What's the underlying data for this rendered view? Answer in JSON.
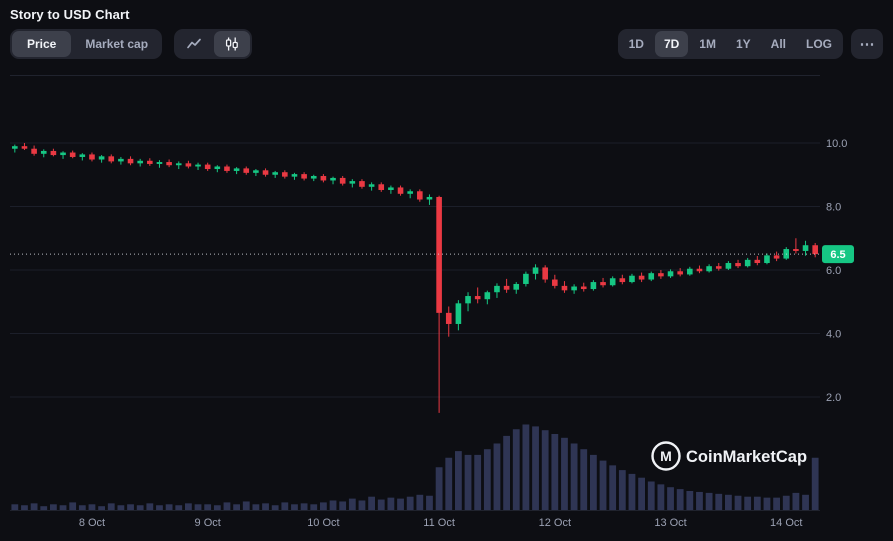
{
  "header": {
    "title": "Story to USD Chart"
  },
  "toolbar": {
    "metric": [
      {
        "label": "Price",
        "active": true
      },
      {
        "label": "Market cap",
        "active": false
      }
    ],
    "chart_type": [
      {
        "name": "line-chart",
        "active": false
      },
      {
        "name": "candlestick-chart",
        "active": true
      }
    ],
    "ranges": [
      {
        "label": "1D",
        "active": false
      },
      {
        "label": "7D",
        "active": true
      },
      {
        "label": "1M",
        "active": false
      },
      {
        "label": "1Y",
        "active": false
      },
      {
        "label": "All",
        "active": false
      },
      {
        "label": "LOG",
        "active": false
      }
    ],
    "more_label": "⋯"
  },
  "watermark": {
    "monogram": "M",
    "text": "CoinMarketCap"
  },
  "chart_data": {
    "type": "candlestick",
    "title": "Story to USD Chart",
    "x_labels": [
      "8 Oct",
      "9 Oct",
      "10 Oct",
      "11 Oct",
      "12 Oct",
      "13 Oct",
      "14 Oct"
    ],
    "x_label_indices": [
      8,
      20,
      32,
      44,
      56,
      68,
      80
    ],
    "y_tick_labels": [
      "10.0",
      "8.0",
      "6.0",
      "4.0",
      "2.0"
    ],
    "y_range_shown": [
      2.0,
      10.0
    ],
    "grid": "horizontal-only",
    "current_price": 6.5,
    "current_price_label": "6.5",
    "colors": {
      "up": "#16c784",
      "down": "#ea3943",
      "volume": "#2f3554",
      "price_badge": "#16c784",
      "grid": "#1c1f2a",
      "axis_text": "#9ba1b3"
    },
    "candles_format": [
      "open",
      "high",
      "low",
      "close",
      "volume_rel"
    ],
    "candles": [
      [
        9.82,
        9.95,
        9.7,
        9.9,
        6
      ],
      [
        9.9,
        10.0,
        9.78,
        9.82,
        5
      ],
      [
        9.82,
        9.92,
        9.6,
        9.66,
        7
      ],
      [
        9.66,
        9.8,
        9.55,
        9.75,
        4
      ],
      [
        9.75,
        9.82,
        9.58,
        9.62,
        6
      ],
      [
        9.62,
        9.74,
        9.5,
        9.7,
        5
      ],
      [
        9.7,
        9.76,
        9.52,
        9.56,
        8
      ],
      [
        9.56,
        9.68,
        9.45,
        9.64,
        5
      ],
      [
        9.64,
        9.7,
        9.42,
        9.48,
        6
      ],
      [
        9.48,
        9.62,
        9.38,
        9.58,
        4
      ],
      [
        9.58,
        9.64,
        9.36,
        9.42,
        7
      ],
      [
        9.42,
        9.56,
        9.32,
        9.5,
        5
      ],
      [
        9.5,
        9.58,
        9.3,
        9.36,
        6
      ],
      [
        9.36,
        9.5,
        9.26,
        9.44,
        5
      ],
      [
        9.44,
        9.52,
        9.28,
        9.34,
        7
      ],
      [
        9.34,
        9.46,
        9.22,
        9.4,
        5
      ],
      [
        9.4,
        9.48,
        9.24,
        9.3,
        6
      ],
      [
        9.3,
        9.42,
        9.18,
        9.36,
        5
      ],
      [
        9.36,
        9.44,
        9.2,
        9.26,
        7
      ],
      [
        9.26,
        9.38,
        9.15,
        9.32,
        6
      ],
      [
        9.32,
        9.38,
        9.12,
        9.18,
        6
      ],
      [
        9.18,
        9.3,
        9.08,
        9.26,
        5
      ],
      [
        9.26,
        9.32,
        9.06,
        9.12,
        8
      ],
      [
        9.12,
        9.24,
        9.02,
        9.2,
        6
      ],
      [
        9.2,
        9.26,
        9.0,
        9.06,
        9
      ],
      [
        9.06,
        9.18,
        8.96,
        9.14,
        6
      ],
      [
        9.14,
        9.2,
        8.94,
        9.0,
        7
      ],
      [
        9.0,
        9.12,
        8.9,
        9.08,
        5
      ],
      [
        9.08,
        9.14,
        8.88,
        8.94,
        8
      ],
      [
        8.94,
        9.06,
        8.84,
        9.02,
        6
      ],
      [
        9.02,
        9.08,
        8.82,
        8.88,
        7
      ],
      [
        8.88,
        9.0,
        8.8,
        8.96,
        6
      ],
      [
        8.96,
        9.02,
        8.76,
        8.82,
        8
      ],
      [
        8.82,
        8.94,
        8.7,
        8.9,
        10
      ],
      [
        8.9,
        8.96,
        8.66,
        8.72,
        9
      ],
      [
        8.72,
        8.86,
        8.6,
        8.8,
        12
      ],
      [
        8.8,
        8.86,
        8.56,
        8.62,
        10
      ],
      [
        8.62,
        8.76,
        8.5,
        8.7,
        14
      ],
      [
        8.7,
        8.76,
        8.46,
        8.52,
        11
      ],
      [
        8.52,
        8.66,
        8.4,
        8.6,
        13
      ],
      [
        8.6,
        8.66,
        8.34,
        8.4,
        12
      ],
      [
        8.4,
        8.54,
        8.26,
        8.48,
        14
      ],
      [
        8.48,
        8.54,
        8.15,
        8.22,
        16
      ],
      [
        8.22,
        8.38,
        8.05,
        8.3,
        15
      ],
      [
        8.3,
        8.34,
        1.5,
        4.65,
        45
      ],
      [
        4.65,
        4.85,
        3.9,
        4.3,
        55
      ],
      [
        4.3,
        5.05,
        4.1,
        4.95,
        62
      ],
      [
        4.95,
        5.3,
        4.7,
        5.18,
        58
      ],
      [
        5.18,
        5.45,
        4.95,
        5.08,
        58
      ],
      [
        5.08,
        5.35,
        4.92,
        5.3,
        64
      ],
      [
        5.3,
        5.58,
        5.12,
        5.5,
        70
      ],
      [
        5.5,
        5.72,
        5.28,
        5.38,
        78
      ],
      [
        5.38,
        5.62,
        5.25,
        5.56,
        85
      ],
      [
        5.56,
        5.95,
        5.48,
        5.88,
        90
      ],
      [
        5.88,
        6.18,
        5.7,
        6.08,
        88
      ],
      [
        6.08,
        6.15,
        5.6,
        5.7,
        84
      ],
      [
        5.7,
        5.85,
        5.42,
        5.5,
        80
      ],
      [
        5.5,
        5.65,
        5.28,
        5.36,
        76
      ],
      [
        5.36,
        5.55,
        5.25,
        5.48,
        70
      ],
      [
        5.48,
        5.6,
        5.32,
        5.4,
        64
      ],
      [
        5.4,
        5.68,
        5.35,
        5.62,
        58
      ],
      [
        5.62,
        5.75,
        5.45,
        5.52,
        52
      ],
      [
        5.52,
        5.8,
        5.48,
        5.74,
        47
      ],
      [
        5.74,
        5.85,
        5.55,
        5.62,
        42
      ],
      [
        5.62,
        5.88,
        5.58,
        5.82,
        38
      ],
      [
        5.82,
        5.92,
        5.62,
        5.7,
        34
      ],
      [
        5.7,
        5.95,
        5.65,
        5.9,
        30
      ],
      [
        5.9,
        6.0,
        5.72,
        5.8,
        27
      ],
      [
        5.8,
        6.02,
        5.75,
        5.96,
        24
      ],
      [
        5.96,
        6.06,
        5.8,
        5.86,
        22
      ],
      [
        5.86,
        6.1,
        5.82,
        6.04,
        20
      ],
      [
        6.04,
        6.14,
        5.9,
        5.96,
        19
      ],
      [
        5.96,
        6.18,
        5.92,
        6.12,
        18
      ],
      [
        6.12,
        6.22,
        5.98,
        6.04,
        17
      ],
      [
        6.04,
        6.28,
        6.0,
        6.22,
        16
      ],
      [
        6.22,
        6.32,
        6.06,
        6.12,
        15
      ],
      [
        6.12,
        6.38,
        6.08,
        6.32,
        14
      ],
      [
        6.32,
        6.44,
        6.15,
        6.22,
        14
      ],
      [
        6.22,
        6.52,
        6.18,
        6.46,
        13
      ],
      [
        6.46,
        6.58,
        6.28,
        6.36,
        13
      ],
      [
        6.36,
        6.72,
        6.32,
        6.66,
        15
      ],
      [
        6.66,
        7.0,
        6.52,
        6.6,
        18
      ],
      [
        6.6,
        6.92,
        6.45,
        6.78,
        16
      ],
      [
        6.78,
        6.85,
        6.4,
        6.5,
        55
      ]
    ]
  }
}
